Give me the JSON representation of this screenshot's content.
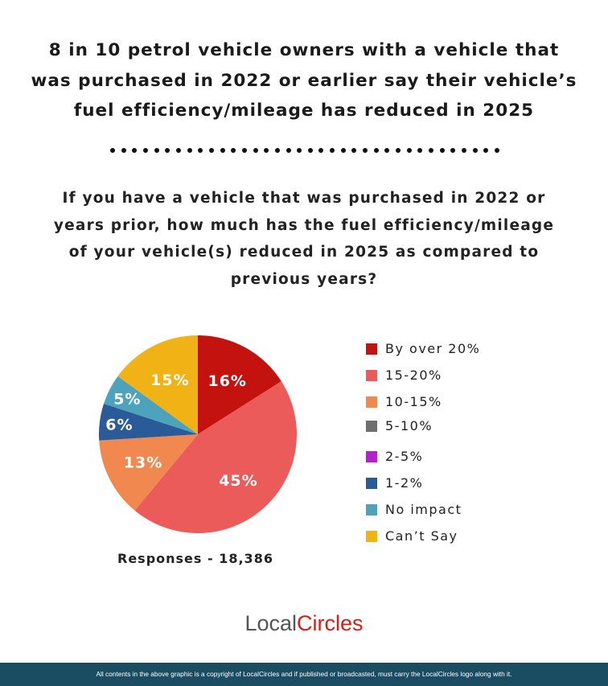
{
  "title_lines": [
    "8 in 10 petrol vehicle owners with a vehicle that",
    "was purchased in 2022 or earlier say their vehicle’s",
    "fuel efficiency/mileage has reduced in 2025"
  ],
  "question_lines": [
    "If you have a vehicle that was purchased in 2022 or",
    "years prior, how much has the fuel efficiency/mileage",
    "of your vehicle(s) reduced in 2025 as compared to",
    "previous years?"
  ],
  "responses": "Responses - 18,386",
  "logo": {
    "part1": "Local",
    "part2": "C",
    "part3": "ircles"
  },
  "footer": "All contents in the above graphic is a copyright of LocalCircles and if published or broadcasted, must carry the LocalCircles logo along with it.",
  "chart_data": {
    "type": "pie",
    "start": "top, clockwise",
    "legend_position": "right",
    "categories": [
      "By over 20%",
      "15-20%",
      "10-15%",
      "5-10%",
      "2-5%",
      "1-2%",
      "No impact",
      "Can’t Say"
    ],
    "values": [
      16,
      45,
      13,
      0,
      0,
      6,
      5,
      15
    ],
    "labels": [
      "16%",
      "45%",
      "13%",
      "",
      "",
      "6%",
      "5%",
      "15%"
    ],
    "colors": [
      "#c4120e",
      "#ea5b59",
      "#f0884f",
      "#6f6f6f",
      "#b61fd0",
      "#2a5b98",
      "#4da3bc",
      "#f0b214"
    ]
  }
}
